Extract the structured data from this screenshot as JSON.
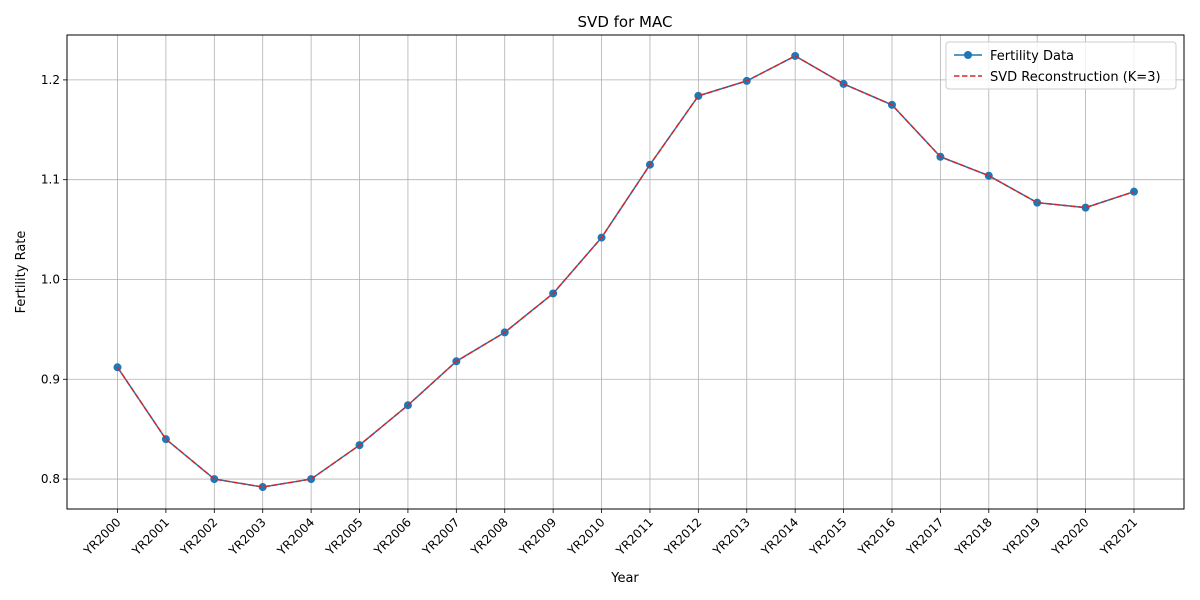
{
  "chart_data": {
    "type": "line",
    "title": "SVD for MAC",
    "xlabel": "Year",
    "ylabel": "Fertility Rate",
    "categories": [
      "YR2000",
      "YR2001",
      "YR2002",
      "YR2003",
      "YR2004",
      "YR2005",
      "YR2006",
      "YR2007",
      "YR2008",
      "YR2009",
      "YR2010",
      "YR2011",
      "YR2012",
      "YR2013",
      "YR2014",
      "YR2015",
      "YR2016",
      "YR2017",
      "YR2018",
      "YR2019",
      "YR2020",
      "YR2021"
    ],
    "ylim": [
      0.77,
      1.245
    ],
    "yticks": [
      0.8,
      0.9,
      1.0,
      1.1,
      1.2
    ],
    "ytick_labels": [
      "0.8",
      "0.9",
      "1.0",
      "1.1",
      "1.2"
    ],
    "grid": true,
    "legend_position": "top-right",
    "series": [
      {
        "name": "Fertility Data",
        "color": "#1f77b4",
        "style": "solid-with-markers",
        "values": [
          0.912,
          0.84,
          0.8,
          0.792,
          0.8,
          0.834,
          0.874,
          0.918,
          0.947,
          0.986,
          1.042,
          1.115,
          1.184,
          1.199,
          1.224,
          1.196,
          1.175,
          1.123,
          1.104,
          1.077,
          1.072,
          1.088
        ]
      },
      {
        "name": "SVD Reconstruction (K=3)",
        "color": "#d62728",
        "style": "dashed",
        "values": [
          0.912,
          0.84,
          0.8,
          0.792,
          0.8,
          0.834,
          0.874,
          0.918,
          0.947,
          0.986,
          1.042,
          1.115,
          1.184,
          1.199,
          1.224,
          1.196,
          1.175,
          1.123,
          1.104,
          1.077,
          1.072,
          1.088
        ]
      }
    ]
  }
}
